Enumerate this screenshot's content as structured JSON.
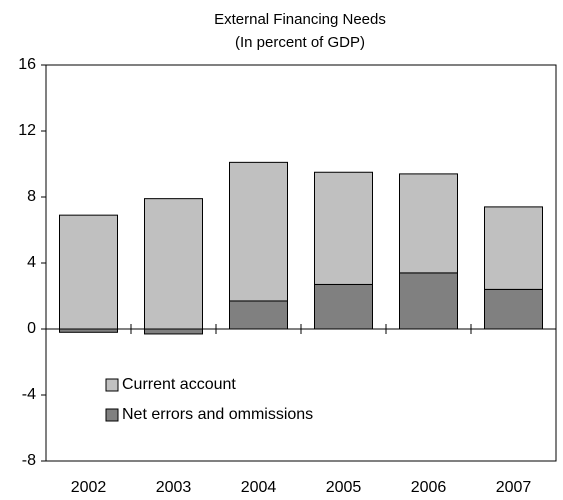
{
  "chart_data": {
    "type": "stacked-bar",
    "title": "External Financing Needs",
    "subtitle": "(In percent of GDP)",
    "categories": [
      "2002",
      "2003",
      "2004",
      "2005",
      "2006",
      "2007"
    ],
    "series": [
      {
        "name": "Current account",
        "color": "#c0c0c0",
        "values": [
          6.9,
          7.9,
          8.4,
          6.8,
          6.0,
          5.0
        ]
      },
      {
        "name": "Net errors and ommissions",
        "color": "#808080",
        "values": [
          -0.2,
          -0.3,
          1.7,
          2.7,
          3.4,
          2.4
        ]
      }
    ],
    "ylim": [
      -8,
      16
    ],
    "yticks": [
      -8,
      -4,
      0,
      4,
      8,
      12,
      16
    ],
    "legend": "lower left"
  }
}
